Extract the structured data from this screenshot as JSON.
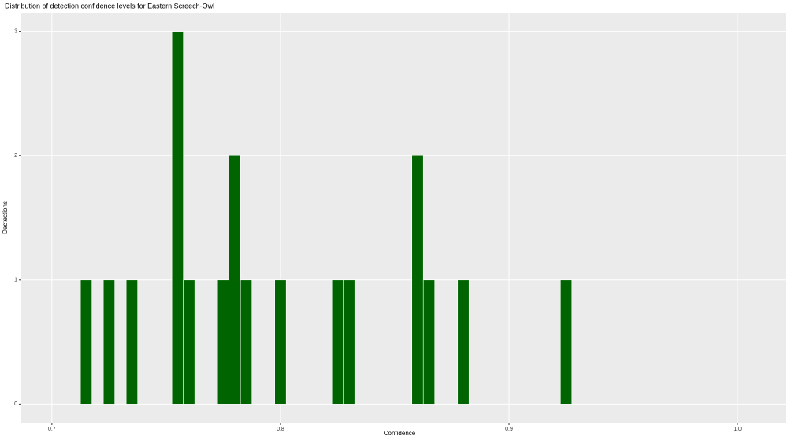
{
  "chart_data": {
    "type": "histogram",
    "title": "Distribution of detection confidence levels for Eastern Screech-Owl",
    "x_label": "Confidence",
    "y_label": "Dectections",
    "bins": [
      0.7125,
      0.7175,
      0.7225,
      0.7275,
      0.7325,
      0.7375,
      0.7425,
      0.7475,
      0.7525,
      0.7575,
      0.7625,
      0.7675,
      0.7725,
      0.7775,
      0.7825,
      0.7875,
      0.7925,
      0.7975,
      0.8025,
      0.8075,
      0.8125,
      0.8175,
      0.8225,
      0.8275,
      0.8325,
      0.8375,
      0.8425,
      0.8475,
      0.8525,
      0.8575,
      0.8625,
      0.8675,
      0.8725,
      0.8775,
      0.8825,
      0.8875,
      0.8925,
      0.8975,
      0.9025,
      0.9075,
      0.9125,
      0.9175,
      0.9225,
      0.9275
    ],
    "values": [
      1,
      0,
      1,
      0,
      1,
      0,
      0,
      0,
      3,
      1,
      0,
      0,
      1,
      2,
      1,
      0,
      0,
      1,
      0,
      0,
      0,
      0,
      1,
      1,
      0,
      0,
      0,
      0,
      0,
      2,
      1,
      0,
      0,
      1,
      0,
      0,
      0,
      0,
      0,
      0,
      0,
      0,
      1
    ],
    "color": "#006400",
    "edge_color": "#ffffff",
    "panel_color": "#ebebeb",
    "xlim": [
      0.6866,
      1.021
    ],
    "ylim": [
      -0.15,
      3.15
    ],
    "xticks": [
      0.7,
      0.8,
      0.9,
      {
        "value": 1,
        "label": "1.0"
      }
    ],
    "yticks": [
      0,
      1,
      2,
      3
    ],
    "grid": true
  }
}
